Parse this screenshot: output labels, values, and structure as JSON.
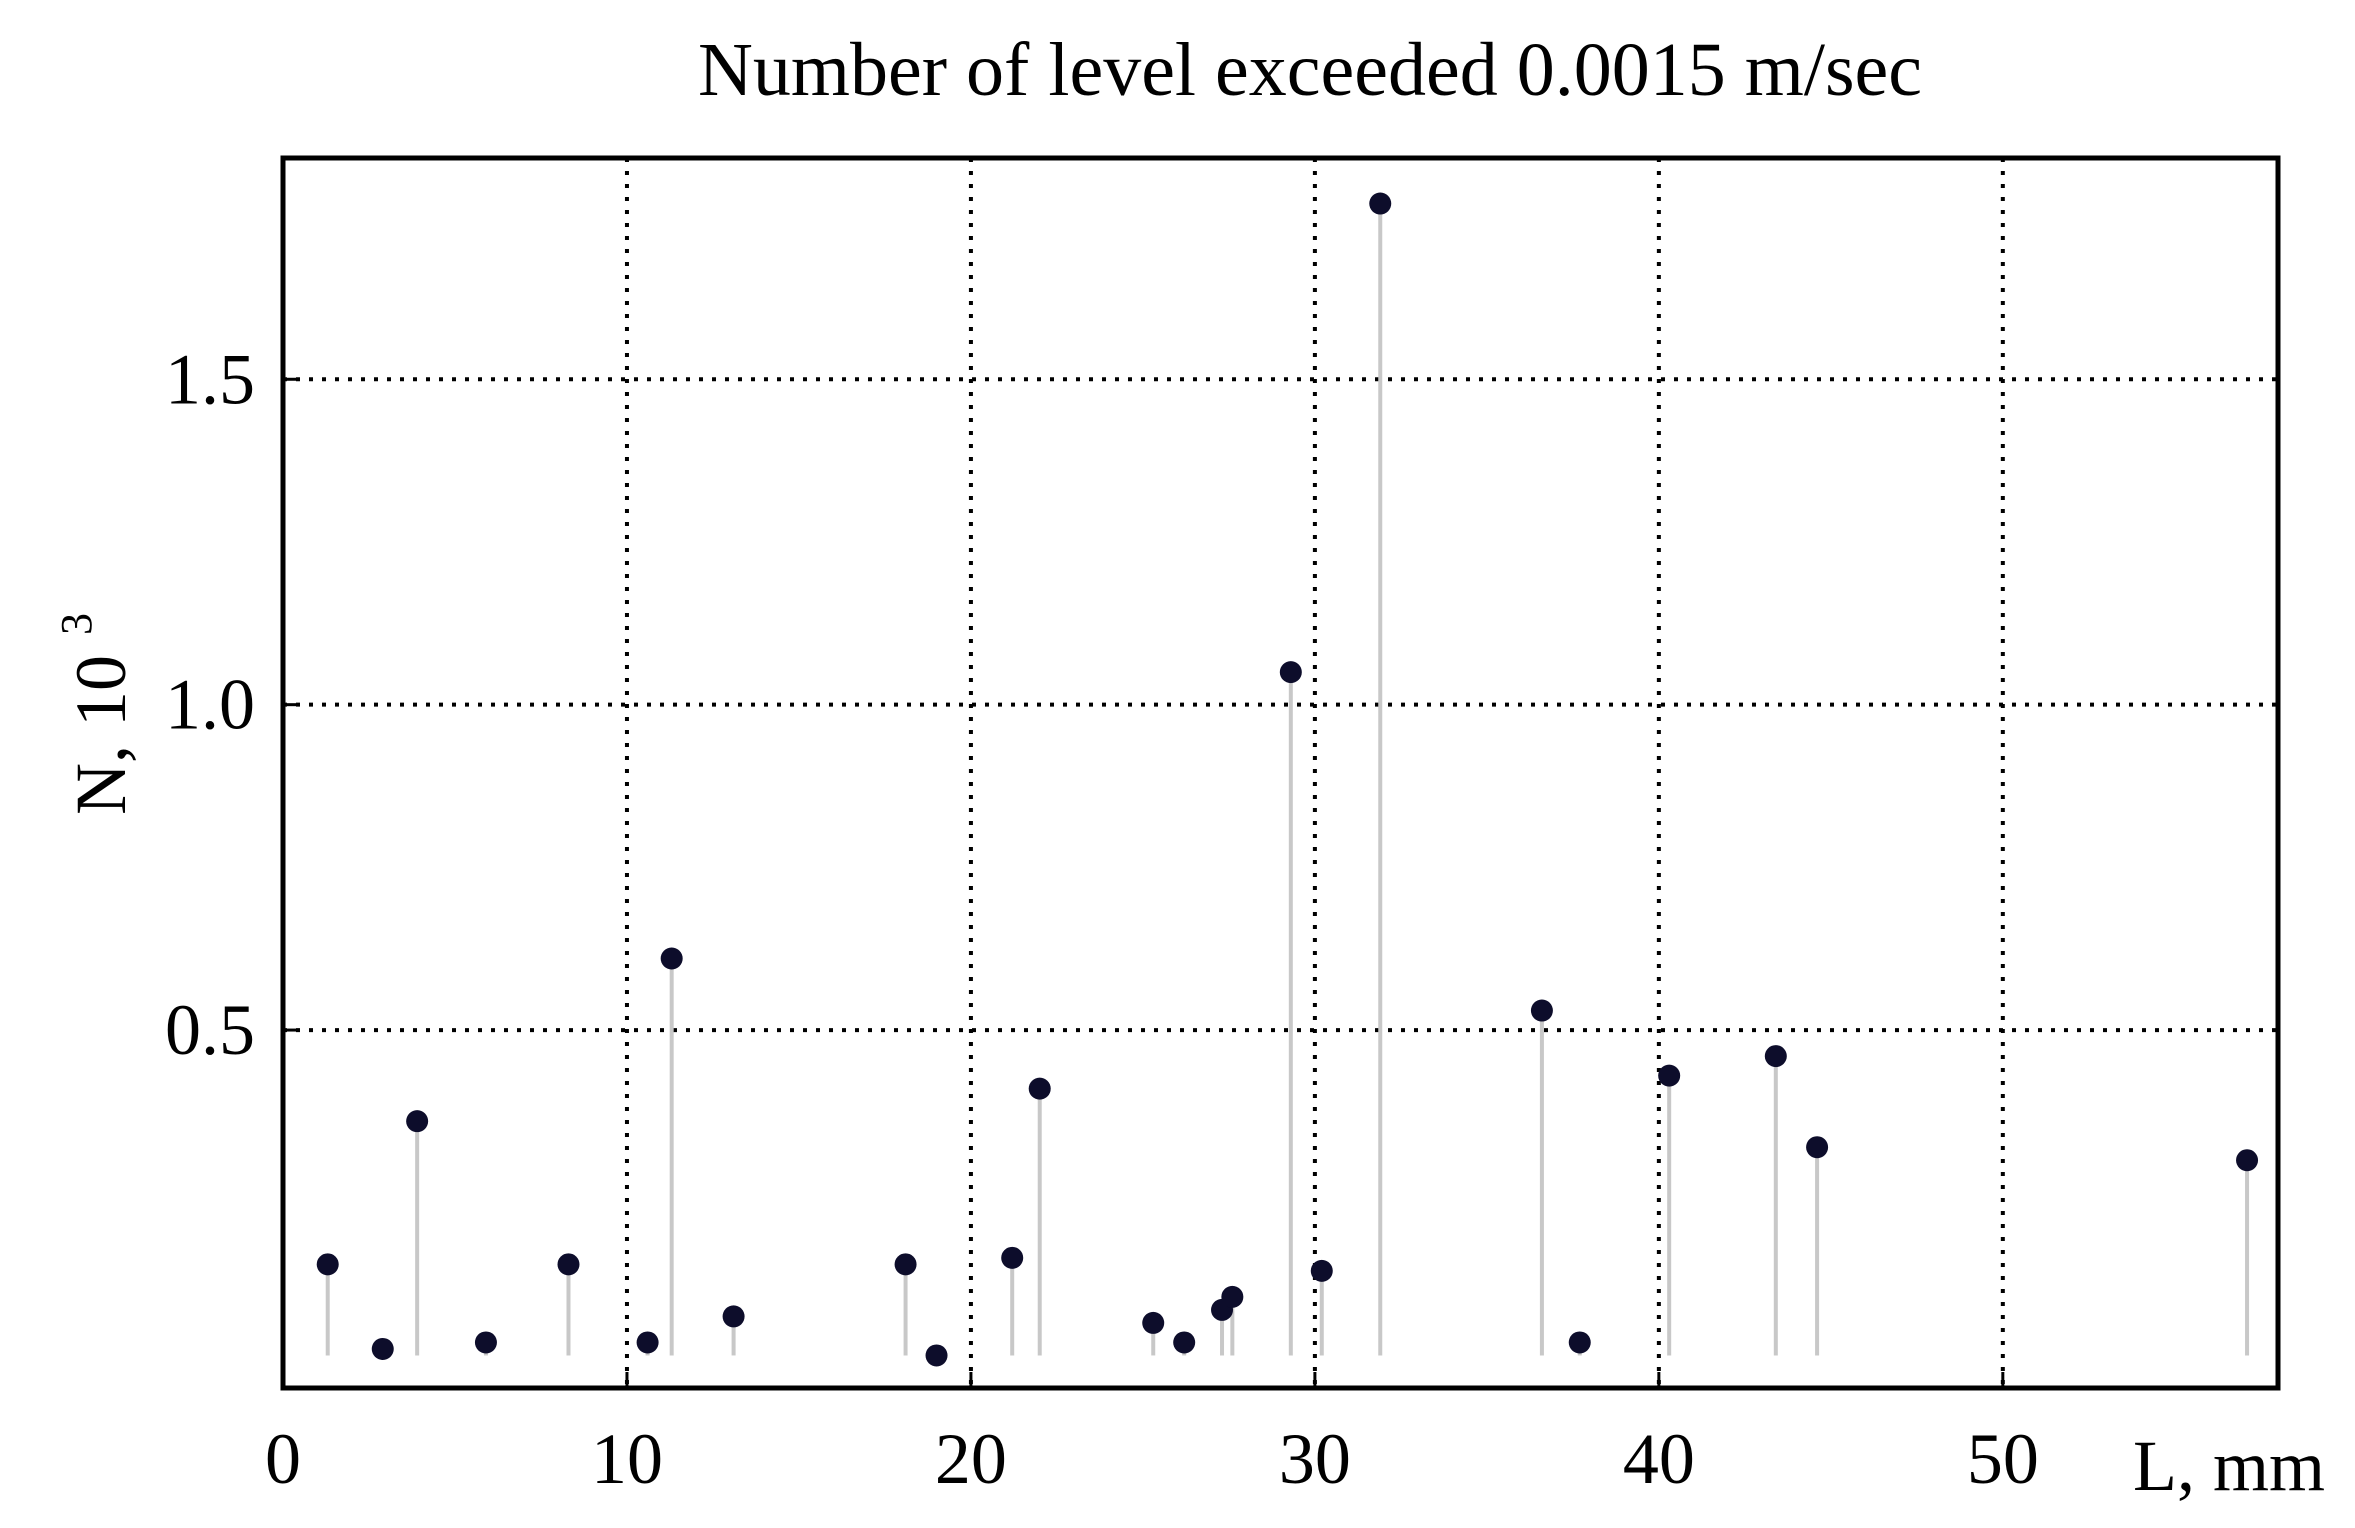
{
  "chart_data": {
    "type": "scatter",
    "subtype": "stem",
    "title": "Number of level exceeded 0.0015 m/sec",
    "xlabel": "L, mm",
    "ylabel": "N, 10",
    "ylabel_exponent": "3",
    "xlim": [
      0,
      58
    ],
    "ylim": [
      -0.05,
      1.84
    ],
    "stem_base": 0,
    "x_ticks": [
      {
        "value": 0,
        "label": "0"
      },
      {
        "value": 10,
        "label": "10"
      },
      {
        "value": 20,
        "label": "20"
      },
      {
        "value": 30,
        "label": "30"
      },
      {
        "value": 40,
        "label": "40"
      },
      {
        "value": 50,
        "label": "50"
      }
    ],
    "y_ticks": [
      {
        "value": 0.5,
        "label": "0.5"
      },
      {
        "value": 1.0,
        "label": "1.0"
      },
      {
        "value": 1.5,
        "label": "1.5"
      }
    ],
    "grid": true,
    "grid_style": "dotted",
    "legend": "none",
    "marker_color": "#0d0d2b",
    "stem_color": "#c8c8c8",
    "series": [
      {
        "points": [
          {
            "x": 1.3,
            "y": 0.14
          },
          {
            "x": 2.9,
            "y": 0.01
          },
          {
            "x": 3.9,
            "y": 0.36
          },
          {
            "x": 5.9,
            "y": 0.02
          },
          {
            "x": 8.3,
            "y": 0.14
          },
          {
            "x": 10.6,
            "y": 0.02
          },
          {
            "x": 11.3,
            "y": 0.61
          },
          {
            "x": 13.1,
            "y": 0.06
          },
          {
            "x": 18.1,
            "y": 0.14
          },
          {
            "x": 19.0,
            "y": 0.0
          },
          {
            "x": 21.2,
            "y": 0.15
          },
          {
            "x": 22.0,
            "y": 0.41
          },
          {
            "x": 25.3,
            "y": 0.05
          },
          {
            "x": 26.2,
            "y": 0.02
          },
          {
            "x": 27.3,
            "y": 0.07
          },
          {
            "x": 27.6,
            "y": 0.09
          },
          {
            "x": 29.3,
            "y": 1.05
          },
          {
            "x": 30.2,
            "y": 0.13
          },
          {
            "x": 31.9,
            "y": 1.77
          },
          {
            "x": 36.6,
            "y": 0.53
          },
          {
            "x": 37.7,
            "y": 0.02
          },
          {
            "x": 40.3,
            "y": 0.43
          },
          {
            "x": 43.4,
            "y": 0.46
          },
          {
            "x": 44.6,
            "y": 0.32
          },
          {
            "x": 57.1,
            "y": 0.3
          }
        ]
      }
    ]
  }
}
